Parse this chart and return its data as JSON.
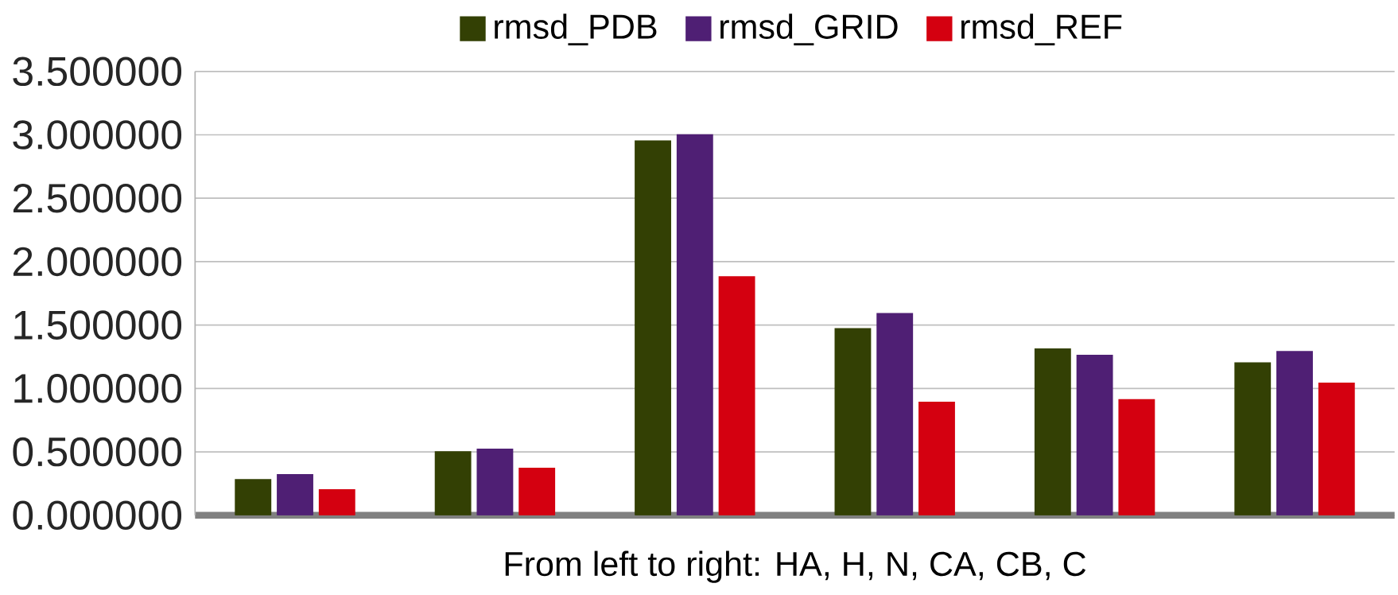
{
  "chart_data": {
    "type": "bar",
    "xlabel": "From left to right: HA, H, N, CA, CB, C",
    "categories": [
      null,
      null,
      null,
      null,
      null,
      null
    ],
    "series": [
      {
        "name": "rmsd_PDB",
        "color": "#334004",
        "values": [
          0.28,
          0.5,
          2.95,
          1.47,
          1.31,
          1.2
        ]
      },
      {
        "name": "rmsd_GRID",
        "color": "#4f1f74",
        "values": [
          0.32,
          0.52,
          3.0,
          1.59,
          1.26,
          1.29
        ]
      },
      {
        "name": "rmsd_REF",
        "color": "#d40010",
        "values": [
          0.2,
          0.37,
          1.88,
          0.89,
          0.91,
          1.04
        ]
      }
    ],
    "ylim": [
      0,
      3.5
    ],
    "yticks": [
      {
        "value": 0,
        "label": "0.000000"
      },
      {
        "value": 0.5,
        "label": "0.500000"
      },
      {
        "value": 1,
        "label": "1.000000"
      },
      {
        "value": 1.5,
        "label": "1.500000"
      },
      {
        "value": 2,
        "label": "2.000000"
      },
      {
        "value": 2.5,
        "label": "2.500000"
      },
      {
        "value": 3,
        "label": "3.000000"
      },
      {
        "value": 3.5,
        "label": "3.500000"
      }
    ],
    "grid": "y",
    "legend": "top"
  }
}
